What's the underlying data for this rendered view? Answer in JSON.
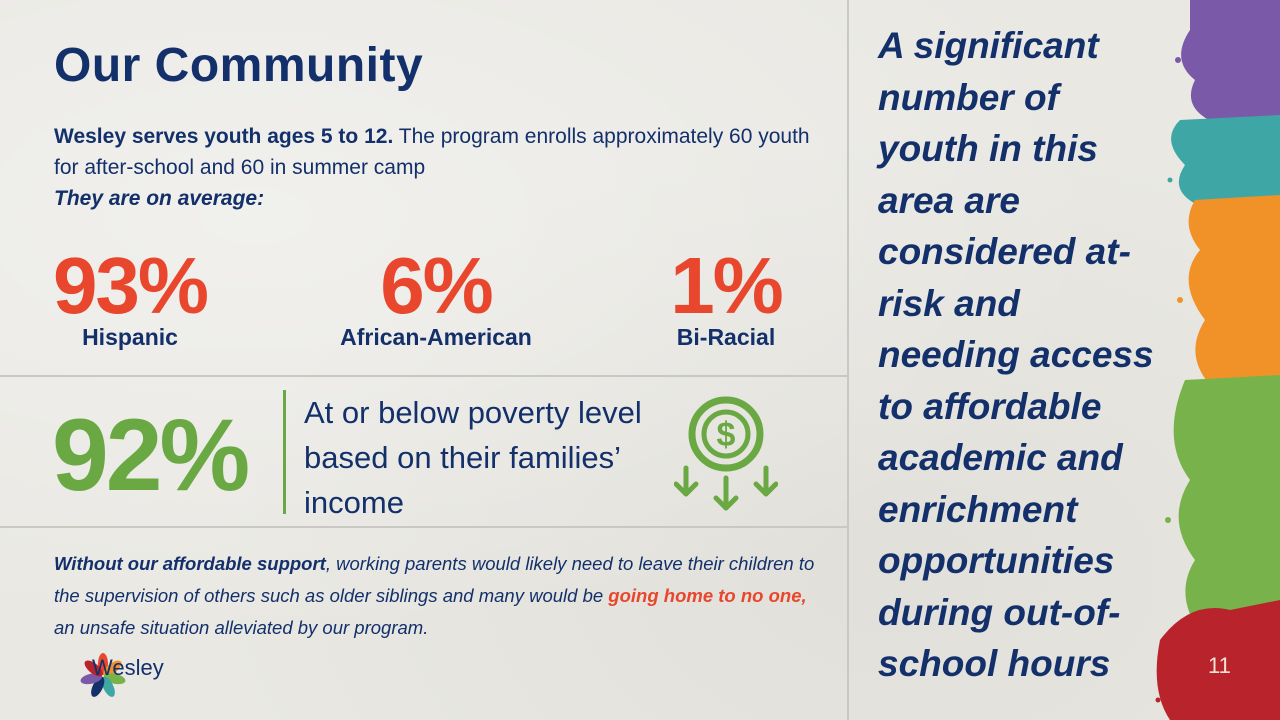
{
  "title": "Our Community",
  "intro": {
    "bold": "Wesley serves youth ages 5 to 12.",
    "text": " The program enrolls approximately 60 youth for after-school and 60 in summer camp",
    "lead": "They are on average:"
  },
  "stats": [
    {
      "value": "93%",
      "label": "Hispanic"
    },
    {
      "value": "6%",
      "label": "African-American"
    },
    {
      "value": "1%",
      "label": "Bi-Racial"
    }
  ],
  "poverty": {
    "value": "92%",
    "text": "At or below poverty level based on their families’ income",
    "icon": "dollar-coin-down-arrows-icon"
  },
  "footnote": {
    "bold": "Without our affordable support",
    "text1": ", working parents would likely need to leave their children to the supervision of others such as older siblings and many would be ",
    "highlight": "going home to no one,",
    "text2": " an unsafe situation alleviated by our program."
  },
  "logo": {
    "name": "Wesley",
    "icon": "pinwheel-logo-icon"
  },
  "side_text": "A significant number of youth in this area are considered at-risk and needing access to affordable academic and enrichment opportunities during out-of-school hours",
  "page_number": "11",
  "colors": {
    "navy": "#13306b",
    "red": "#e8472e",
    "green": "#6aa843",
    "purple": "#7a5aa8",
    "teal": "#3fa6a6",
    "orange": "#f09228",
    "paint_green": "#77b34a",
    "crimson": "#b8232c"
  }
}
